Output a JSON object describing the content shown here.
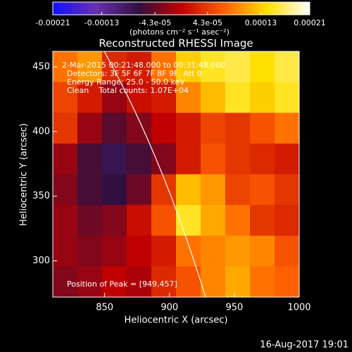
{
  "chart_data": {
    "type": "heatmap",
    "title": "Reconstructed RHESSI Image",
    "x_label": "Heliocentric X (arcsec)",
    "y_label": "Heliocentric Y (arcsec)",
    "xlim": [
      810,
      1000
    ],
    "xticks": [
      850,
      900,
      950,
      1000
    ],
    "ylim": [
      272,
      462
    ],
    "yticks": [
      300,
      350,
      400,
      450
    ],
    "colorbar_label": "(photons cm⁻² s⁻¹ asec⁻²)",
    "clim": [
      -0.00021,
      0.00021
    ],
    "colorbar_ticks": [
      -0.00021,
      -0.00013,
      {
        "value": -4.3e-05,
        "label": "-4.3e-05"
      },
      {
        "value": 4.3e-05,
        "label": "4.3e-05"
      },
      0.00013,
      0.00021
    ],
    "colormap": [
      "#1010ff",
      "#6a30b0",
      "#301040",
      "#c00000",
      "#ff6000",
      "#ffe000",
      "#ffffff"
    ],
    "annotations": [
      "2-Mar-2015 00:21:48.000 to 00:31:48.000",
      "Detectors: 3F 5F 6F 7F 8F 9F, Att 0",
      "Energy Range: 25.0 - 50.0 keV",
      "Clean    Total counts: 1.07E+04"
    ],
    "peak_note": "Position of Peak = [949,457]",
    "timestamp": "16-Aug-2017 19:01",
    "values": [
      [
        8e-05,
        0.0001,
        3e-05,
        2e-05,
        8e-05,
        0.00013,
        0.00015,
        0.00016,
        0.00014,
        0.00016
      ],
      [
        5e-05,
        2e-05,
        -2e-05,
        1e-05,
        2e-05,
        9e-05,
        0.00012,
        0.00015,
        0.00013,
        0.00015
      ],
      [
        4e-05,
        -2e-05,
        -5e-05,
        -3e-05,
        0,
        2e-05,
        5e-05,
        4e-05,
        6e-05,
        8e-05
      ],
      [
        -2e-05,
        -6e-05,
        -8e-05,
        -6e-05,
        -3e-05,
        2e-05,
        6e-05,
        4e-05,
        3e-05,
        2e-05
      ],
      [
        -3e-05,
        -6e-05,
        -7e-05,
        -4e-05,
        4e-05,
        0.00012,
        0.0001,
        5e-05,
        6e-05,
        4e-05
      ],
      [
        -2e-05,
        -4e-05,
        -3e-05,
        1e-05,
        6e-05,
        0.00015,
        0.00011,
        8e-05,
        4e-05,
        3e-05
      ],
      [
        -2e-05,
        -3e-05,
        -2e-05,
        0,
        2e-05,
        8e-05,
        9e-05,
        0.0001,
        9e-05,
        6e-05
      ],
      [
        -3e-05,
        -2e-05,
        0,
        -1e-05,
        3e-05,
        6e-05,
        9e-05,
        0.00011,
        8e-05,
        7e-05
      ]
    ]
  }
}
